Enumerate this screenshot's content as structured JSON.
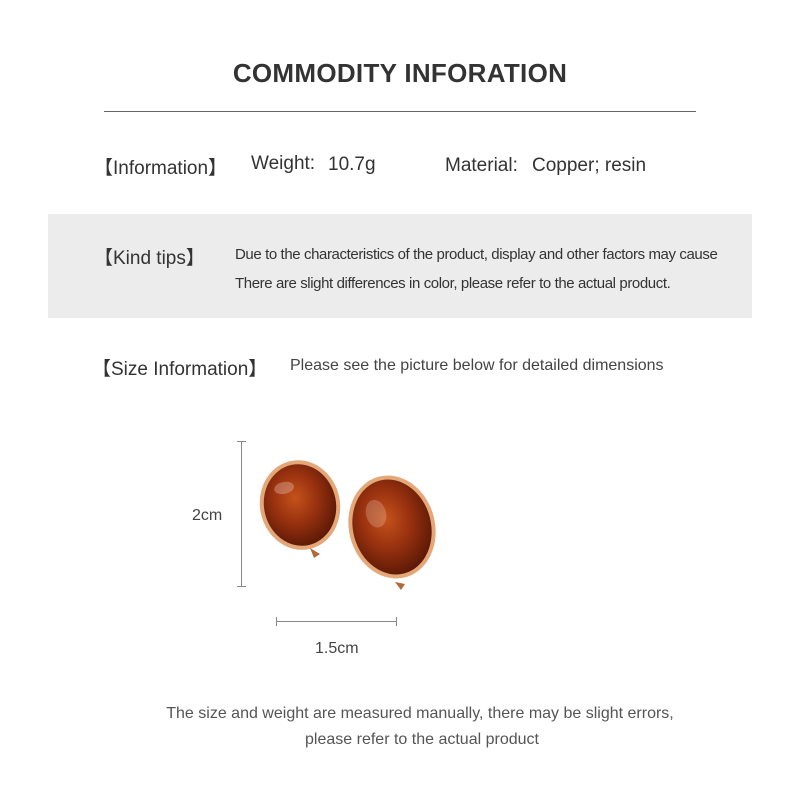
{
  "header": {
    "title": "COMMODITY INFORATION"
  },
  "information": {
    "label": "【Information】",
    "weight_label": "Weight:",
    "weight_value": "10.7g",
    "material_label": "Material:",
    "material_value": "Copper; resin"
  },
  "kind_tips": {
    "label": "【Kind tips】",
    "lines": [
      "Due to the characteristics of the product, display and other factors may cause",
      "There are slight differences in color, please refer to the actual product."
    ],
    "background": "#ececec"
  },
  "size_information": {
    "label": "【Size Information】",
    "text": "Please see the picture below for detailed dimensions",
    "height_label": "2cm",
    "width_label": "1.5cm"
  },
  "footer": {
    "lines": [
      "The size and weight are measured manually, there may be slight errors,",
      "please refer to the actual product"
    ]
  },
  "colors": {
    "resin": "#a3360c",
    "gold": "#e0a070"
  }
}
